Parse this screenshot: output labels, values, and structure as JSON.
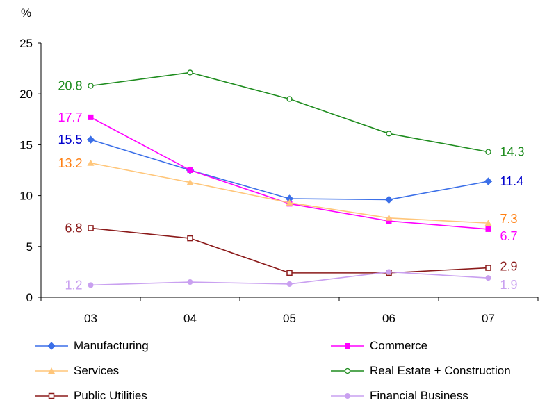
{
  "chart_data": {
    "type": "line",
    "unit_label": "%",
    "categories": [
      "03",
      "04",
      "05",
      "06",
      "07"
    ],
    "ylim": [
      0,
      25
    ],
    "yticks": [
      "0",
      "5",
      "10",
      "15",
      "20",
      "25"
    ],
    "grid": false,
    "legend_position": "bottom",
    "series": [
      {
        "name": "Manufacturing",
        "color": "#3b6fe8",
        "marker": "diamond",
        "values": [
          15.5,
          12.5,
          9.7,
          9.6,
          11.4
        ],
        "labels": {
          "first": "15.5",
          "last": "11.4"
        },
        "label_color": "#0000cc"
      },
      {
        "name": "Commerce",
        "color": "#ff00ff",
        "marker": "square",
        "values": [
          17.7,
          12.5,
          9.2,
          7.5,
          6.7
        ],
        "labels": {
          "first": "17.7",
          "last": "6.7"
        },
        "label_color": "#ff00ff"
      },
      {
        "name": "Services",
        "color": "#ffc67a",
        "marker": "triangle",
        "values": [
          13.2,
          11.3,
          9.3,
          7.8,
          7.3
        ],
        "labels": {
          "first": "13.2",
          "last": "7.3"
        },
        "label_color": "#ff7f11"
      },
      {
        "name": "Real Estate + Construction",
        "color": "#1e8c1e",
        "marker": "circle-open",
        "values": [
          20.8,
          22.1,
          19.5,
          16.1,
          14.3
        ],
        "labels": {
          "first": "20.8",
          "last": "14.3"
        },
        "label_color": "#1e8c1e"
      },
      {
        "name": "Public Utilities",
        "color": "#8b1a1a",
        "marker": "square-open",
        "values": [
          6.8,
          5.8,
          2.4,
          2.4,
          2.9
        ],
        "labels": {
          "first": "6.8",
          "last": "2.9"
        },
        "label_color": "#8b1a1a"
      },
      {
        "name": "Financial Business",
        "color": "#c9a0f0",
        "marker": "circle",
        "values": [
          1.2,
          1.5,
          1.3,
          2.5,
          1.9
        ],
        "labels": {
          "first": "1.2",
          "last": "1.9"
        },
        "label_color": "#c9a0f0"
      }
    ]
  }
}
